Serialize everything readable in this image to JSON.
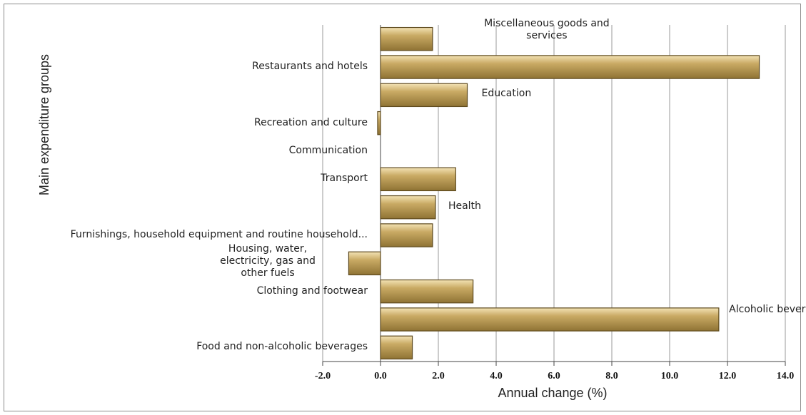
{
  "chart_data": {
    "type": "barh",
    "x_label": "Annual change (%)",
    "y_label": "Main expenditure groups",
    "categories": [
      "Food and non-alcoholic beverages",
      "Alcoholic beverages and tobacco",
      "Clothing and footwear",
      "Housing, water, electricity, gas and other fuels",
      "Furnishings, household equipment and routine household...",
      "Health",
      "Transport",
      "Communication",
      "Recreation and culture",
      "Education",
      "Restaurants and hotels",
      "Miscellaneous goods and services"
    ],
    "values": [
      1.1,
      11.7,
      3.2,
      -1.1,
      1.8,
      1.9,
      2.6,
      0.0,
      -0.1,
      3.0,
      13.1,
      1.8
    ],
    "color": "#c2a25c",
    "xlim": [
      -2,
      14
    ],
    "xticks": [
      {
        "value": -2,
        "label": "-2.0"
      },
      {
        "value": 0,
        "label": "0.0"
      },
      {
        "value": 2,
        "label": "2.0"
      },
      {
        "value": 4,
        "label": "4.0"
      },
      {
        "value": 6,
        "label": "6.0"
      },
      {
        "value": 8,
        "label": "8.0"
      },
      {
        "value": 10,
        "label": "10.0"
      },
      {
        "value": 12,
        "label": "12.0"
      },
      {
        "value": 14,
        "label": "14.0"
      }
    ],
    "grid": true
  }
}
